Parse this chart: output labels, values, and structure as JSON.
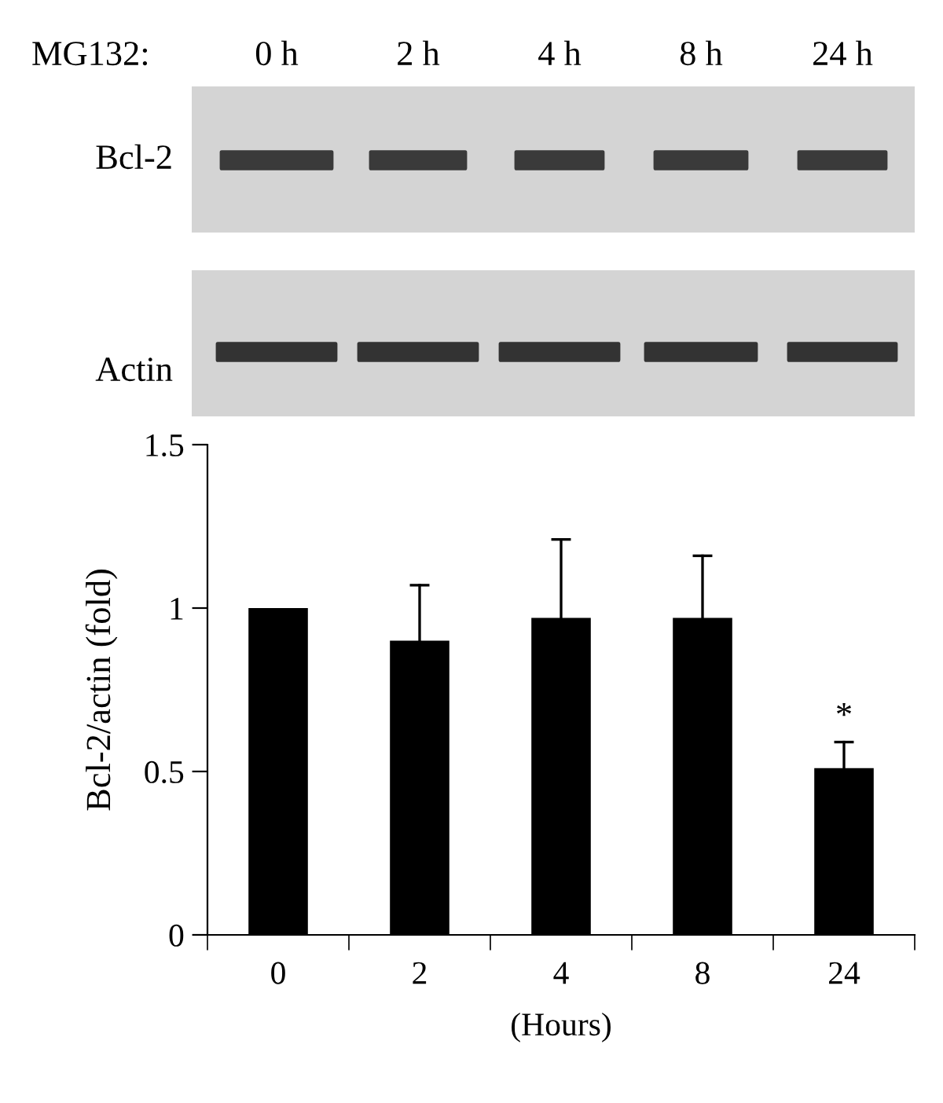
{
  "chart_data": {
    "type": "bar",
    "xlabel": "(Hours)",
    "ylabel": "Bcl-2/actin (fold)",
    "categories": [
      "0",
      "2",
      "4",
      "8",
      "24"
    ],
    "series": [
      {
        "color": "#000000",
        "values": [
          1.0,
          0.9,
          0.97,
          0.97,
          0.51
        ],
        "errors": [
          null,
          [
            0.9,
            1.07
          ],
          [
            0.97,
            1.21
          ],
          [
            0.97,
            1.16
          ],
          [
            0.51,
            0.59
          ]
        ]
      }
    ],
    "ylim": [
      0,
      1.5
    ],
    "yticks": [
      0,
      0.5,
      1,
      1.5
    ],
    "grid": false,
    "legend": false,
    "annotations": [
      "MG132:",
      "0 h",
      "2 h",
      "4 h",
      "8 h",
      "24 h",
      "Bcl-2",
      "Actin",
      {
        "text": "*",
        "x": "24",
        "y": 0.59
      }
    ]
  }
}
